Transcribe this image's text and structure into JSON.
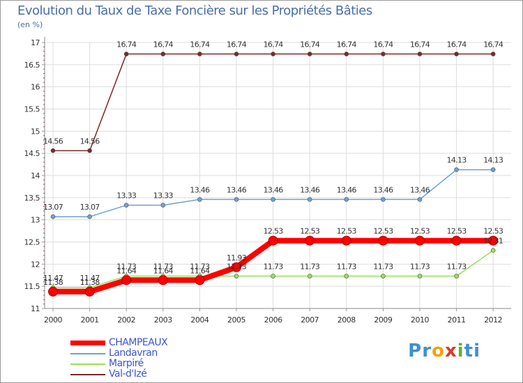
{
  "header": {
    "title": "Evolution du Taux de Taxe Foncière sur les Propriétés Bâties",
    "unit": "(en %)"
  },
  "chart_data": {
    "type": "line",
    "title": "Evolution du Taux de Taxe Foncière sur les Propriétés Bâties",
    "ylabel": "(en %)",
    "xlabel": "",
    "ylim": [
      11,
      17
    ],
    "yticks": [
      "11",
      "11.5",
      "12",
      "12.5",
      "13",
      "13.5",
      "14",
      "14.5",
      "15",
      "15.5",
      "16",
      "16.5",
      "17"
    ],
    "grid": true,
    "x": [
      "2000",
      "2001",
      "2002",
      "2003",
      "2004",
      "2005",
      "2006",
      "2007",
      "2008",
      "2009",
      "2010",
      "2011",
      "2012"
    ],
    "series": [
      {
        "name": "CHAMPEAUX",
        "color": "#ff0000",
        "values": [
          11.38,
          11.38,
          11.64,
          11.64,
          11.64,
          11.93,
          12.53,
          12.53,
          12.53,
          12.53,
          12.53,
          12.53,
          12.53
        ],
        "labels": [
          "11.38",
          "11.38",
          "11.64",
          "11.64",
          "11.64",
          "11.93",
          "12.53",
          "12.53",
          "12.53",
          "12.53",
          "12.53",
          "12.53",
          "12.53"
        ]
      },
      {
        "name": "Landavran",
        "color": "#6fa0d2",
        "values": [
          13.07,
          13.07,
          13.33,
          13.33,
          13.46,
          13.46,
          13.46,
          13.46,
          13.46,
          13.46,
          13.46,
          14.13,
          14.13
        ],
        "labels": [
          "13.07",
          "13.07",
          "13.33",
          "13.33",
          "13.46",
          "13.46",
          "13.46",
          "13.46",
          "13.46",
          "13.46",
          "13.46",
          "14.13",
          "14.13"
        ]
      },
      {
        "name": "Marpiré",
        "color": "#99e055",
        "values": [
          11.47,
          11.47,
          11.73,
          11.73,
          11.73,
          11.73,
          11.73,
          11.73,
          11.73,
          11.73,
          11.73,
          11.73,
          12.31
        ],
        "labels": [
          "11.47",
          "11.47",
          "11.73",
          "11.73",
          "11.73",
          "11.73",
          "11.73",
          "11.73",
          "11.73",
          "11.73",
          "11.73",
          "11.73",
          "12.31"
        ]
      },
      {
        "name": "Val-d'Izé",
        "color": "#7a2828",
        "values": [
          14.56,
          14.56,
          16.74,
          16.74,
          16.74,
          16.74,
          16.74,
          16.74,
          16.74,
          16.74,
          16.74,
          16.74,
          16.74
        ],
        "labels": [
          "14.56",
          "14.56",
          "16.74",
          "16.74",
          "16.74",
          "16.74",
          "16.74",
          "16.74",
          "16.74",
          "16.74",
          "16.74",
          "16.74",
          "16.74"
        ]
      }
    ]
  },
  "legend": {
    "items": [
      "CHAMPEAUX",
      "Landavran",
      "Marpiré",
      "Val-d'Izé"
    ]
  },
  "logo": {
    "letters": [
      "P",
      "r",
      "o",
      "x",
      "i",
      "t",
      "i"
    ],
    "colors": [
      "#3d8fd6",
      "#3d8fd6",
      "#f2a20d",
      "#e0372c",
      "#5cb531",
      "#3d8fd6",
      "#3d8fd6"
    ]
  }
}
